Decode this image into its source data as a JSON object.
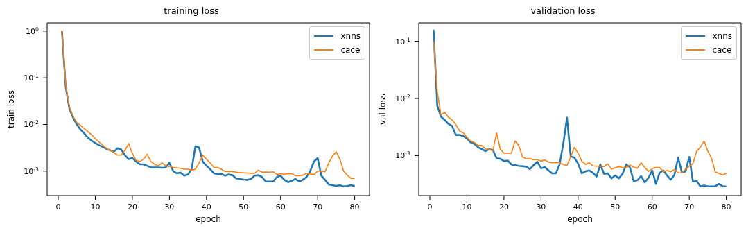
{
  "chart_data": [
    {
      "type": "line",
      "title": "training loss",
      "xlabel": "epoch",
      "ylabel": "train loss",
      "log": "y",
      "legend": "top right",
      "marker": "none",
      "line_style": "solid",
      "x": [
        1,
        2,
        3,
        4,
        5,
        6,
        7,
        8,
        9,
        10,
        11,
        12,
        13,
        14,
        15,
        16,
        17,
        18,
        19,
        20,
        21,
        22,
        23,
        24,
        25,
        26,
        27,
        28,
        29,
        30,
        31,
        32,
        33,
        34,
        35,
        36,
        37,
        38,
        39,
        40,
        41,
        42,
        43,
        44,
        45,
        46,
        47,
        48,
        49,
        50,
        51,
        52,
        53,
        54,
        55,
        56,
        57,
        58,
        59,
        60,
        61,
        62,
        63,
        64,
        65,
        66,
        67,
        68,
        69,
        70,
        71,
        72,
        73,
        74,
        75,
        76,
        77,
        78,
        79,
        80
      ],
      "xlim": [
        -3,
        84
      ],
      "xticks": [
        0,
        10,
        20,
        30,
        40,
        50,
        60,
        70,
        80
      ],
      "ylim": [
        0.0003,
        1.5
      ],
      "yticks": [
        {
          "value": 1,
          "label": "10$^{0}$"
        },
        {
          "value": 0.1,
          "label": "10$^{-1}$"
        },
        {
          "value": 0.01,
          "label": "10$^{-2}$"
        },
        {
          "value": 0.001,
          "label": "10$^{-3}$"
        }
      ],
      "series": [
        {
          "name": "xnns",
          "color": "#1f77b4",
          "values": [
            1.0,
            0.065,
            0.022,
            0.014,
            0.01,
            0.0078,
            0.0065,
            0.0052,
            0.0045,
            0.004,
            0.0036,
            0.0033,
            0.003,
            0.0028,
            0.0026,
            0.0031,
            0.0029,
            0.0022,
            0.0018,
            0.0019,
            0.0016,
            0.0014,
            0.0014,
            0.0013,
            0.0012,
            0.0012,
            0.0012,
            0.00118,
            0.0012,
            0.0015,
            0.001,
            0.0009,
            0.00093,
            0.0008,
            0.00085,
            0.0011,
            0.0034,
            0.0032,
            0.0016,
            0.0013,
            0.0011,
            0.0009,
            0.00085,
            0.00088,
            0.0008,
            0.00085,
            0.00082,
            0.0007,
            0.00068,
            0.00066,
            0.00065,
            0.00068,
            0.0008,
            0.00082,
            0.00075,
            0.0006,
            0.0006,
            0.0006,
            0.00075,
            0.0008,
            0.00065,
            0.00058,
            0.00062,
            0.00068,
            0.0006,
            0.00065,
            0.00075,
            0.001,
            0.0016,
            0.0019,
            0.0008,
            0.00065,
            0.00052,
            0.0005,
            0.00048,
            0.0005,
            0.00047,
            0.00048,
            0.0005,
            0.00048
          ]
        },
        {
          "name": "cace",
          "color": "#ff7f0e",
          "values": [
            1.05,
            0.07,
            0.024,
            0.015,
            0.011,
            0.0095,
            0.0082,
            0.007,
            0.006,
            0.005,
            0.0042,
            0.0036,
            0.0031,
            0.0028,
            0.0025,
            0.0022,
            0.0022,
            0.0028,
            0.0039,
            0.0024,
            0.0017,
            0.0016,
            0.0018,
            0.0023,
            0.0016,
            0.0014,
            0.0013,
            0.0015,
            0.0013,
            0.00125,
            0.0012,
            0.00118,
            0.00115,
            0.0011,
            0.0011,
            0.00105,
            0.0011,
            0.0015,
            0.0022,
            0.0018,
            0.0015,
            0.0012,
            0.0012,
            0.0011,
            0.00098,
            0.00098,
            0.00098,
            0.00095,
            0.00093,
            0.00092,
            0.00091,
            0.0009,
            0.0009,
            0.00105,
            0.00095,
            0.00096,
            0.00095,
            0.00097,
            0.00085,
            0.00088,
            0.00086,
            0.00088,
            0.00088,
            0.0008,
            0.0008,
            0.00082,
            0.0009,
            0.00087,
            0.00085,
            0.001,
            0.001,
            0.00097,
            0.0015,
            0.0021,
            0.0026,
            0.0018,
            0.001,
            0.00082,
            0.0007,
            0.0007
          ]
        }
      ]
    },
    {
      "type": "line",
      "title": "validation loss",
      "xlabel": "epoch",
      "ylabel": "val loss",
      "log": "y",
      "legend": "top right",
      "marker": "none",
      "line_style": "solid",
      "x": [
        1,
        2,
        3,
        4,
        5,
        6,
        7,
        8,
        9,
        10,
        11,
        12,
        13,
        14,
        15,
        16,
        17,
        18,
        19,
        20,
        21,
        22,
        23,
        24,
        25,
        26,
        27,
        28,
        29,
        30,
        31,
        32,
        33,
        34,
        35,
        36,
        37,
        38,
        39,
        40,
        41,
        42,
        43,
        44,
        45,
        46,
        47,
        48,
        49,
        50,
        51,
        52,
        53,
        54,
        55,
        56,
        57,
        58,
        59,
        60,
        61,
        62,
        63,
        64,
        65,
        66,
        67,
        68,
        69,
        70,
        71,
        72,
        73,
        74,
        75,
        76,
        77,
        78,
        79,
        80
      ],
      "xlim": [
        -3,
        84
      ],
      "xticks": [
        0,
        10,
        20,
        30,
        40,
        50,
        60,
        70,
        80
      ],
      "ylim": [
        0.0002,
        0.21
      ],
      "yticks": [
        {
          "value": 0.1,
          "label": "10$^{-1}$"
        },
        {
          "value": 0.01,
          "label": "10$^{-2}$"
        },
        {
          "value": 0.001,
          "label": "10$^{-3}$"
        }
      ],
      "series": [
        {
          "name": "xnns",
          "color": "#1f77b4",
          "values": [
            0.16,
            0.0075,
            0.0048,
            0.0042,
            0.0036,
            0.0033,
            0.0023,
            0.0023,
            0.0022,
            0.002,
            0.0017,
            0.0016,
            0.0014,
            0.0013,
            0.0012,
            0.0013,
            0.00125,
            0.0009,
            0.00088,
            0.0008,
            0.00082,
            0.0007,
            0.00068,
            0.00066,
            0.00065,
            0.00064,
            0.00058,
            0.00068,
            0.00078,
            0.0006,
            0.00063,
            0.00055,
            0.00049,
            0.00049,
            0.0007,
            0.0016,
            0.0046,
            0.00097,
            0.00092,
            0.00072,
            0.00049,
            0.00053,
            0.00055,
            0.0005,
            0.00043,
            0.0007,
            0.00048,
            0.00049,
            0.0004,
            0.00045,
            0.0004,
            0.00048,
            0.0007,
            0.00062,
            0.00036,
            0.00037,
            0.00044,
            0.00034,
            0.00041,
            0.00055,
            0.00032,
            0.0005,
            0.00055,
            0.00045,
            0.00038,
            0.00046,
            0.00092,
            0.00051,
            0.00053,
            0.00095,
            0.00035,
            0.00036,
            0.00029,
            0.0003,
            0.00029,
            0.00029,
            0.00029,
            0.00032,
            0.00029,
            0.00029
          ]
        },
        {
          "name": "cace",
          "color": "#ff7f0e",
          "values": [
            0.1,
            0.013,
            0.0052,
            0.0057,
            0.0047,
            0.0042,
            0.0035,
            0.0027,
            0.0025,
            0.0021,
            0.0018,
            0.0017,
            0.0015,
            0.0015,
            0.0013,
            0.0013,
            0.0012,
            0.0025,
            0.0013,
            0.0011,
            0.0011,
            0.0011,
            0.0018,
            0.0015,
            0.00095,
            0.00088,
            0.00089,
            0.00085,
            0.00085,
            0.0008,
            0.00084,
            0.00077,
            0.00075,
            0.00076,
            0.00075,
            0.0007,
            0.00067,
            0.00095,
            0.0014,
            0.0011,
            0.0008,
            0.0007,
            0.00075,
            0.00066,
            0.00065,
            0.00065,
            0.00064,
            0.00072,
            0.00058,
            0.00061,
            0.00064,
            0.00062,
            0.00062,
            0.00068,
            0.00063,
            0.0006,
            0.00075,
            0.00062,
            0.00053,
            0.00059,
            0.00062,
            0.00062,
            0.00052,
            0.00055,
            0.00052,
            0.00057,
            0.0005,
            0.0005,
            0.00058,
            0.00065,
            0.00073,
            0.0012,
            0.0014,
            0.0018,
            0.0012,
            0.0009,
            0.00052,
            0.00049,
            0.00046,
            0.00049
          ]
        }
      ]
    }
  ]
}
